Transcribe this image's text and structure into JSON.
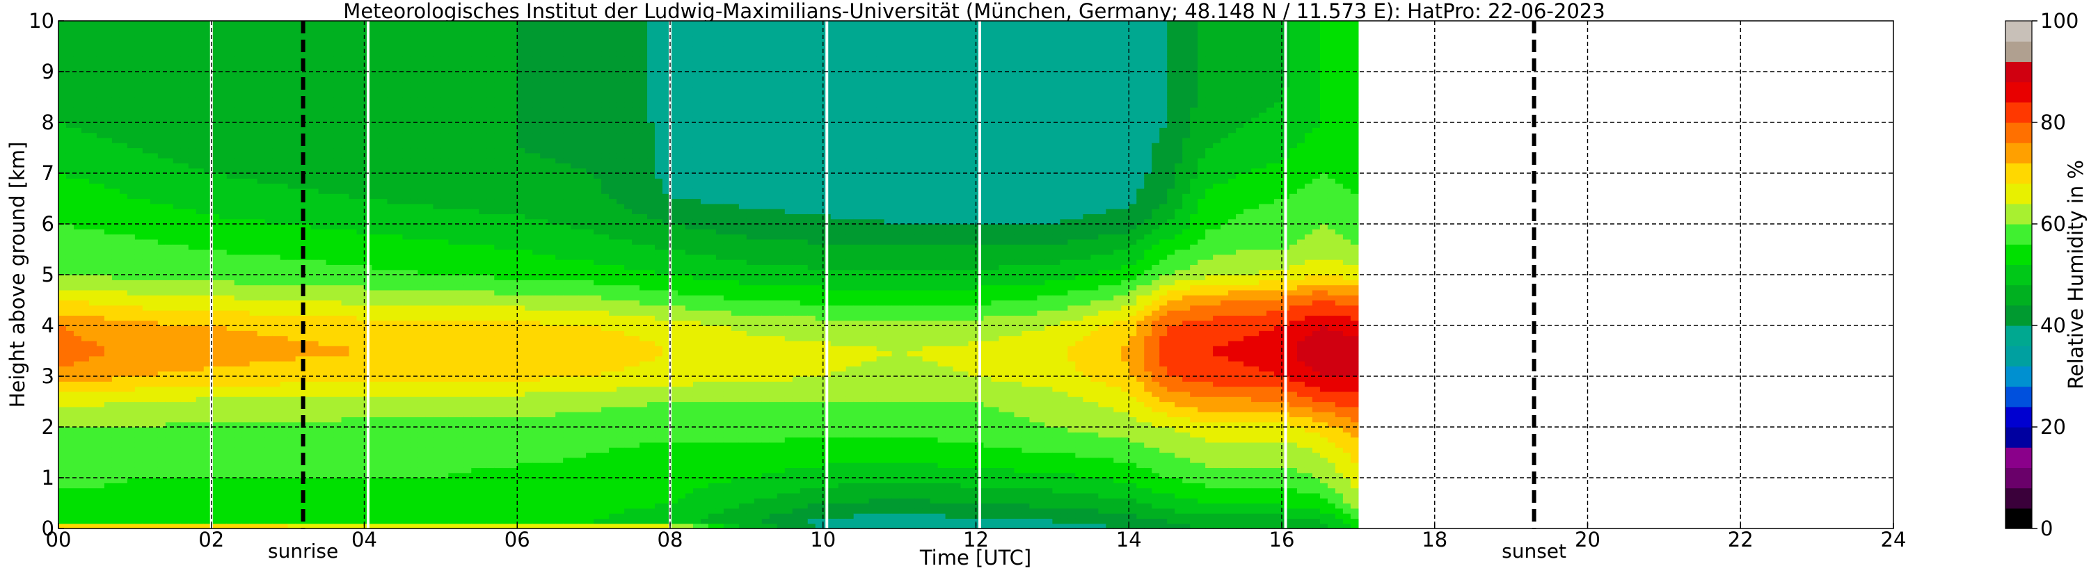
{
  "chart_data": {
    "type": "heatmap",
    "title": "Meteorologisches Institut der Ludwig-Maximilians-Universität (München, Germany; 48.148 N / 11.573 E):    HatPro: 22-06-2023",
    "xlabel": "Time [UTC]",
    "ylabel": "Height above ground [km]",
    "xlim": [
      0,
      24
    ],
    "ylim": [
      0,
      10
    ],
    "xticks": [
      0,
      2,
      4,
      6,
      8,
      10,
      12,
      14,
      16,
      18,
      20,
      22,
      24
    ],
    "xtick_labels": [
      "00",
      "02",
      "04",
      "06",
      "08",
      "10",
      "12",
      "14",
      "16",
      "18",
      "20",
      "22",
      "24"
    ],
    "yticks": [
      0,
      1,
      2,
      3,
      4,
      5,
      6,
      7,
      8,
      9,
      10
    ],
    "yticklabels": [
      "0",
      "1",
      "2",
      "3",
      "4",
      "5",
      "6",
      "7",
      "8",
      "9",
      "10"
    ],
    "grid": true,
    "data_end_hour": 17.0,
    "gap_lines_hours": [
      2.0,
      4.05,
      8.0,
      10.05,
      12.05,
      16.05
    ],
    "events": [
      {
        "label": "sunrise",
        "hour": 3.2
      },
      {
        "label": "sunset",
        "hour": 19.3
      }
    ],
    "colorbar": {
      "label": "Relative Humidity in %",
      "range": [
        0,
        100
      ],
      "ticks": [
        0,
        20,
        40,
        60,
        80,
        100
      ],
      "ticklabels": [
        "0",
        "20",
        "40",
        "60",
        "80",
        "100"
      ],
      "colors": [
        "#000000",
        "#3a003a",
        "#6a006a",
        "#8a008a",
        "#0000a0",
        "#0000d0",
        "#0050dd",
        "#0090d0",
        "#00a0a0",
        "#00a890",
        "#009a30",
        "#00b020",
        "#00c818",
        "#00e000",
        "#40f030",
        "#a8f030",
        "#e8f000",
        "#ffd800",
        "#ffa000",
        "#ff7000",
        "#ff3800",
        "#e80000",
        "#d00010",
        "#b0a090",
        "#c8c0b8"
      ]
    },
    "height_km": [
      0,
      0.15,
      0.5,
      1.0,
      1.5,
      2.0,
      2.5,
      3.0,
      3.5,
      4.0,
      4.5,
      5.0,
      5.5,
      6.0,
      6.5,
      7.0,
      7.5,
      8.0,
      9.0,
      10.0
    ],
    "time_hours": [
      0,
      1,
      2,
      3,
      4,
      5,
      6,
      7,
      8,
      9,
      10,
      11,
      12,
      13,
      14,
      14.5,
      15,
      15.5,
      16,
      16.5,
      17
    ],
    "rh_profiles": [
      [
        78,
        55,
        55,
        57,
        58,
        60,
        65,
        75,
        78,
        76,
        68,
        60,
        58,
        56,
        55,
        52,
        50,
        48,
        45,
        45
      ],
      [
        76,
        54,
        55,
        56,
        57,
        60,
        64,
        72,
        75,
        73,
        66,
        59,
        57,
        55,
        52,
        50,
        48,
        46,
        45,
        45
      ],
      [
        76,
        54,
        55,
        56,
        57,
        59,
        63,
        71,
        74,
        72,
        65,
        58,
        56,
        53,
        50,
        48,
        46,
        45,
        44,
        44
      ],
      [
        75,
        54,
        55,
        56,
        57,
        59,
        63,
        70,
        73,
        71,
        64,
        58,
        55,
        52,
        49,
        47,
        46,
        45,
        44,
        44
      ],
      [
        75,
        53,
        55,
        56,
        57,
        59,
        62,
        70,
        72,
        70,
        63,
        57,
        54,
        51,
        48,
        46,
        45,
        45,
        44,
        44
      ],
      [
        74,
        53,
        54,
        56,
        57,
        59,
        62,
        69,
        72,
        70,
        62,
        56,
        53,
        50,
        47,
        45,
        45,
        45,
        44,
        44
      ],
      [
        74,
        52,
        54,
        55,
        57,
        59,
        62,
        69,
        71,
        69,
        62,
        55,
        52,
        49,
        46,
        45,
        44,
        44,
        44,
        44
      ],
      [
        73,
        52,
        53,
        55,
        56,
        58,
        61,
        68,
        71,
        68,
        61,
        54,
        50,
        47,
        45,
        44,
        43,
        43,
        42,
        42
      ],
      [
        72,
        50,
        52,
        54,
        55,
        57,
        60,
        66,
        68,
        66,
        58,
        52,
        48,
        44,
        40,
        39,
        39,
        39,
        39,
        39
      ],
      [
        48,
        45,
        48,
        52,
        55,
        58,
        60,
        65,
        66,
        63,
        56,
        50,
        46,
        42,
        39,
        38,
        38,
        38,
        38,
        38
      ],
      [
        39,
        39,
        44,
        50,
        54,
        57,
        60,
        64,
        65,
        62,
        55,
        49,
        45,
        41,
        38,
        38,
        38,
        38,
        38,
        38
      ],
      [
        38,
        38,
        43,
        49,
        54,
        57,
        60,
        63,
        64,
        61,
        54,
        49,
        45,
        40,
        38,
        38,
        38,
        38,
        38,
        38
      ],
      [
        38,
        39,
        44,
        50,
        55,
        58,
        60,
        64,
        65,
        62,
        55,
        49,
        45,
        40,
        38,
        38,
        38,
        38,
        38,
        38
      ],
      [
        38,
        40,
        45,
        51,
        56,
        60,
        62,
        66,
        67,
        64,
        57,
        50,
        45,
        40,
        38,
        38,
        38,
        38,
        38,
        38
      ],
      [
        40,
        42,
        47,
        53,
        58,
        62,
        66,
        71,
        73,
        70,
        62,
        54,
        48,
        42,
        39,
        38,
        38,
        38,
        38,
        38
      ],
      [
        42,
        44,
        50,
        56,
        60,
        64,
        72,
        80,
        82,
        80,
        72,
        60,
        55,
        48,
        44,
        42,
        41,
        40,
        40,
        40
      ],
      [
        44,
        46,
        52,
        58,
        62,
        66,
        75,
        82,
        84,
        82,
        75,
        63,
        58,
        55,
        53,
        50,
        48,
        46,
        45,
        45
      ],
      [
        44,
        46,
        52,
        58,
        62,
        66,
        75,
        83,
        85,
        83,
        76,
        64,
        60,
        57,
        55,
        52,
        50,
        48,
        46,
        46
      ],
      [
        44,
        46,
        53,
        58,
        62,
        66,
        76,
        84,
        86,
        84,
        77,
        65,
        60,
        58,
        56,
        53,
        51,
        49,
        47,
        47
      ],
      [
        46,
        48,
        54,
        60,
        64,
        70,
        80,
        88,
        92,
        88,
        80,
        68,
        62,
        60,
        58,
        56,
        54,
        52,
        52,
        52
      ],
      [
        52,
        55,
        62,
        66,
        70,
        74,
        82,
        88,
        90,
        86,
        78,
        66,
        60,
        58,
        56,
        55,
        54,
        53,
        52,
        52
      ]
    ]
  }
}
